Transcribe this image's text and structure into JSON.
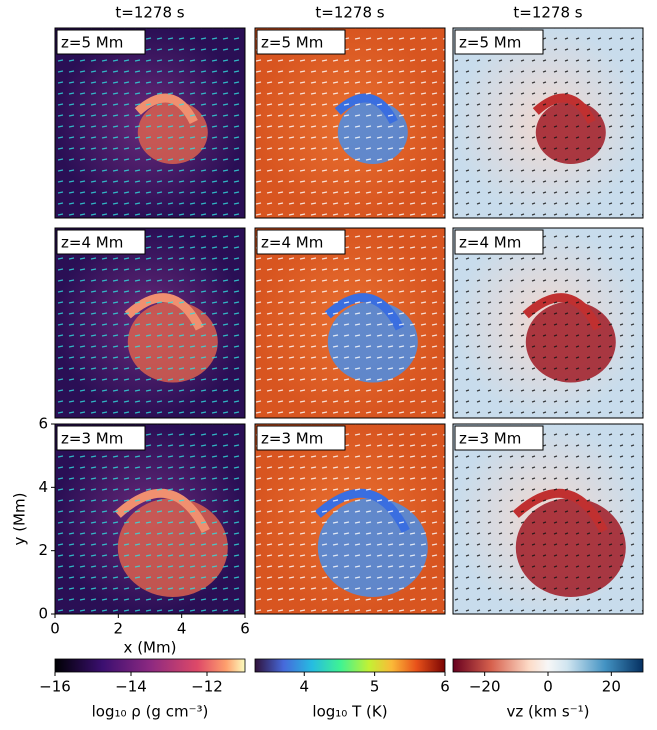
{
  "columns": [
    {
      "title": "t=1278 s",
      "panels": [
        "z=5 Mm",
        "z=4 Mm",
        "z=3 Mm"
      ],
      "colorbar": {
        "label": "log₁₀ ρ (g cm⁻³)",
        "lim": [
          -16,
          -11
        ],
        "ticks": [
          {
            "value": -16,
            "label": "−16"
          },
          {
            "value": -14,
            "label": "−14"
          },
          {
            "value": -12,
            "label": "−12"
          }
        ]
      }
    },
    {
      "title": "t=1278 s",
      "panels": [
        "z=5 Mm",
        "z=4 Mm",
        "z=3 Mm"
      ],
      "colorbar": {
        "label": "log₁₀ T (K)",
        "lim": [
          3.3,
          6
        ],
        "ticks": [
          4,
          5,
          6
        ]
      }
    },
    {
      "title": "t=1278 s",
      "panels": [
        "z=5 Mm",
        "z=4 Mm",
        "z=3 Mm"
      ],
      "colorbar": {
        "label": "vz (km s⁻¹)",
        "lim": [
          -30,
          30
        ],
        "ticks": [
          {
            "value": -20,
            "label": "−20"
          },
          0,
          20
        ]
      }
    }
  ],
  "axes": {
    "xlabel": "x (Mm)",
    "ylabel": "y (Mm)",
    "xlim": [
      0,
      6
    ],
    "ylim": [
      0,
      6
    ],
    "xticks": [
      0,
      2,
      4,
      6
    ],
    "yticks": [
      0,
      2,
      4,
      6
    ]
  }
}
